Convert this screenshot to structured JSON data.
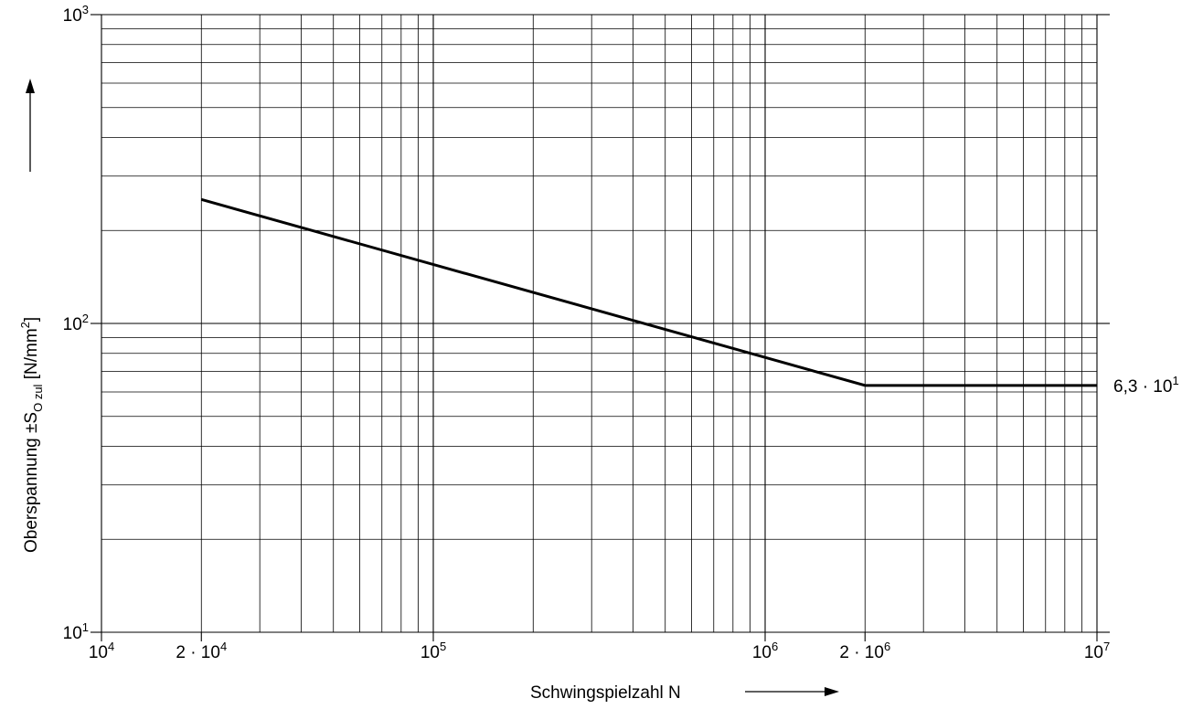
{
  "chart_data": {
    "type": "line",
    "title": "",
    "x_scale": "log",
    "y_scale": "log",
    "xlim": [
      10000,
      10000000
    ],
    "ylim": [
      10,
      1000
    ],
    "grid": true,
    "xlabel": {
      "text": "Schwingspielzahl  N"
    },
    "ylabel": {
      "text": "Oberspannung   ±S",
      "sub": "O zul",
      "unit_open": "   [N/mm",
      "unit_sup": "2",
      "unit_close": "]"
    },
    "x_ticks": [
      {
        "value": 10000,
        "base": "10",
        "exp": "4"
      },
      {
        "value": 20000,
        "base": "2 · 10",
        "exp": "4"
      },
      {
        "value": 100000,
        "base": "10",
        "exp": "5"
      },
      {
        "value": 1000000,
        "base": "10",
        "exp": "6"
      },
      {
        "value": 2000000,
        "base": "2 · 10",
        "exp": "6"
      },
      {
        "value": 10000000,
        "base": "10",
        "exp": "7"
      }
    ],
    "y_ticks": [
      {
        "value": 10,
        "base": "10",
        "exp": "1"
      },
      {
        "value": 100,
        "base": "10",
        "exp": "2"
      },
      {
        "value": 1000,
        "base": "10",
        "exp": "3"
      }
    ],
    "series": [
      {
        "x": [
          20000,
          2000000,
          10000000
        ],
        "y": [
          252,
          63,
          63
        ]
      }
    ],
    "annotations": [
      {
        "x": 10000000,
        "y": 63,
        "base": "6,3 · 10",
        "exp": "1"
      }
    ]
  }
}
